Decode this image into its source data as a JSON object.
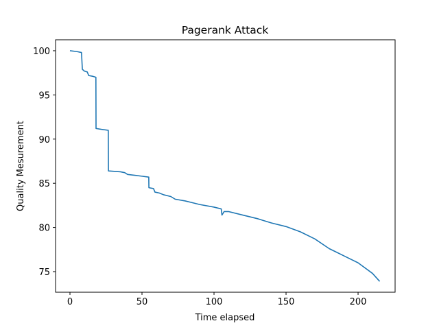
{
  "chart_data": {
    "type": "line",
    "title": "Pagerank Attack",
    "x_label": "Time elapsed",
    "y_label": "Quality Mesurement",
    "x": [
      0,
      5,
      8,
      8.6,
      10,
      12,
      13,
      16,
      18,
      18.1,
      22,
      26.6,
      26.7,
      35,
      38,
      40,
      45,
      50,
      54.7,
      54.8,
      58,
      59,
      62,
      65,
      70,
      73,
      80,
      85,
      90,
      100,
      105,
      105.5,
      107,
      110,
      120,
      130,
      140,
      150,
      160,
      170,
      180,
      185,
      190,
      200,
      210,
      215
    ],
    "values": [
      100,
      99.9,
      99.8,
      97.9,
      97.7,
      97.6,
      97.2,
      97.1,
      97.0,
      91.2,
      91.1,
      91.0,
      86.4,
      86.3,
      86.2,
      86.0,
      85.9,
      85.8,
      85.7,
      84.5,
      84.4,
      84.0,
      83.9,
      83.7,
      83.5,
      83.2,
      83.0,
      82.8,
      82.6,
      82.3,
      82.1,
      81.4,
      81.8,
      81.8,
      81.4,
      81.0,
      80.5,
      80.1,
      79.5,
      78.7,
      77.6,
      77.2,
      76.8,
      76.0,
      74.8,
      73.9
    ],
    "color": "#1f77b4",
    "xlim": [
      -10,
      225.7
    ],
    "ylim": [
      72.67,
      101.24
    ],
    "xticks": [
      0,
      50,
      100,
      150,
      200
    ],
    "yticks": [
      75,
      80,
      85,
      90,
      95,
      100
    ]
  }
}
